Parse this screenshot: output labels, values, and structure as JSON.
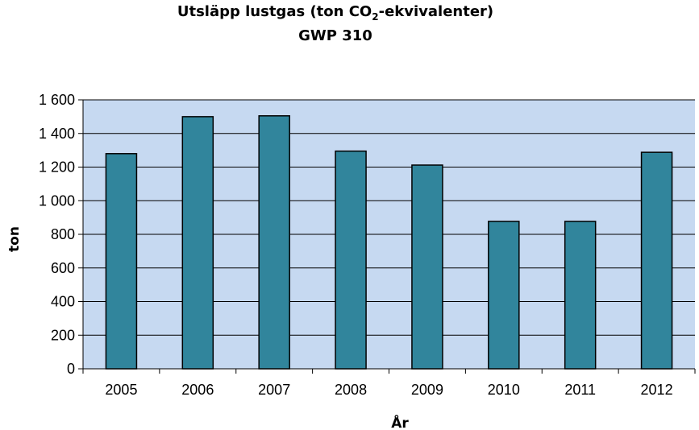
{
  "chart_data": {
    "type": "bar",
    "title": {
      "prefix": "Utsläpp lustgas (ton CO",
      "subscript": "2",
      "suffix": "-ekvivalenter)",
      "line2": "GWP 310"
    },
    "xlabel": "År",
    "ylabel": "ton",
    "categories": [
      "2005",
      "2006",
      "2007",
      "2008",
      "2009",
      "2010",
      "2011",
      "2012"
    ],
    "values": [
      1280,
      1500,
      1505,
      1295,
      1212,
      877,
      877,
      1288
    ],
    "ylim": [
      0,
      1600
    ],
    "yticks": [
      0,
      200,
      400,
      600,
      800,
      1000,
      1200,
      1400,
      1600
    ],
    "ytick_labels": [
      "0",
      "200",
      "400",
      "600",
      "800",
      "1 000",
      "1 200",
      "1 400",
      "1 600"
    ],
    "grid": true,
    "legend": "none",
    "colors": {
      "bar_fill": "#31859C",
      "bar_stroke": "#000000",
      "plot_background": "#C6D9F1",
      "gridline": "#000000"
    }
  }
}
